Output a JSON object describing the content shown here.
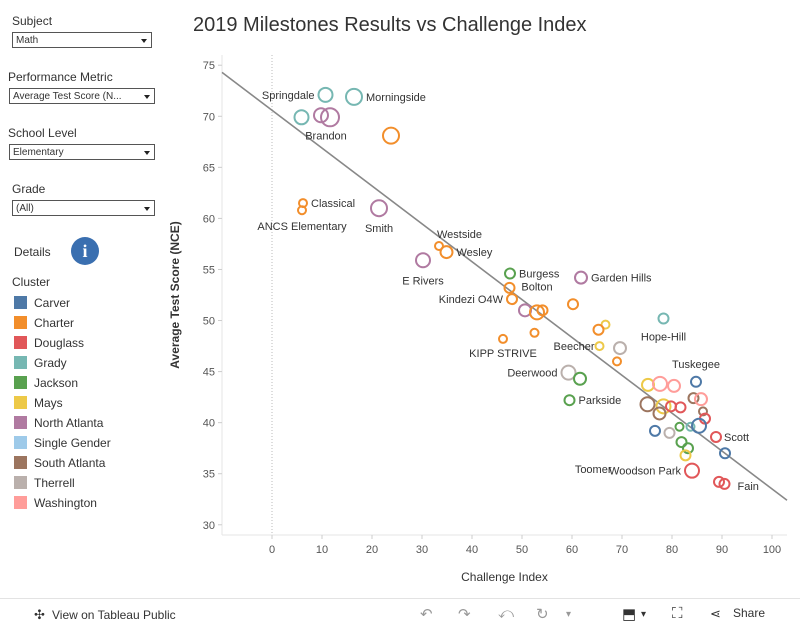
{
  "title": "2019 Milestones Results vs Challenge Index",
  "filters": [
    {
      "label": "Subject",
      "value": "Math"
    },
    {
      "label": "Performance Metric",
      "value": "Average Test Score (N..."
    },
    {
      "label": "School Level",
      "value": "Elementary"
    },
    {
      "label": "Grade",
      "value": "(All)"
    }
  ],
  "details_label": "Details",
  "info_glyph": "i",
  "legend": {
    "title": "Cluster",
    "items": [
      {
        "name": "Carver",
        "color": "#4e79a7"
      },
      {
        "name": "Charter",
        "color": "#f28e2b"
      },
      {
        "name": "Douglass",
        "color": "#e15759"
      },
      {
        "name": "Grady",
        "color": "#76b7b2"
      },
      {
        "name": "Jackson",
        "color": "#59a14f"
      },
      {
        "name": "Mays",
        "color": "#edc948"
      },
      {
        "name": "North Atlanta",
        "color": "#b07aa1"
      },
      {
        "name": "Single Gender",
        "color": "#9ecae9"
      },
      {
        "name": "South Atlanta",
        "color": "#9c755f"
      },
      {
        "name": "Therrell",
        "color": "#bab0ac"
      },
      {
        "name": "Washington",
        "color": "#ff9d9a"
      }
    ]
  },
  "footer": {
    "view_label": "View on Tableau Public",
    "share_label": "Share"
  },
  "chart_data": {
    "type": "scatter",
    "title": "2019 Milestones Results vs Challenge Index",
    "xlabel": "Challenge Index",
    "ylabel": "Average Test Score (NCE)",
    "xlim": [
      -10,
      103
    ],
    "ylim": [
      29,
      76
    ],
    "xticks": [
      0,
      10,
      20,
      30,
      40,
      50,
      60,
      70,
      80,
      90,
      100
    ],
    "yticks": [
      30,
      35,
      40,
      45,
      50,
      55,
      60,
      65,
      70,
      75
    ],
    "trendline": {
      "x1": -10,
      "y1": 74.3,
      "x2": 103,
      "y2": 32.4
    },
    "points": [
      {
        "x": 10.7,
        "y": 72.1,
        "cluster": "Grady",
        "size": 7,
        "label": "Springdale"
      },
      {
        "x": 16.4,
        "y": 71.9,
        "cluster": "Grady",
        "size": 8,
        "label": "Morningside"
      },
      {
        "x": 5.9,
        "y": 69.9,
        "cluster": "Grady",
        "size": 7,
        "label": ""
      },
      {
        "x": 9.8,
        "y": 70.1,
        "cluster": "North Atlanta",
        "size": 7,
        "label": ""
      },
      {
        "x": 11.6,
        "y": 69.9,
        "cluster": "North Atlanta",
        "size": 9,
        "label": "Brandon"
      },
      {
        "x": 23.8,
        "y": 68.1,
        "cluster": "Charter",
        "size": 8,
        "label": ""
      },
      {
        "x": 6.2,
        "y": 61.5,
        "cluster": "Charter",
        "size": 4,
        "label": "Classical"
      },
      {
        "x": 6.0,
        "y": 60.8,
        "cluster": "Charter",
        "size": 4,
        "label": "ANCS Elementary"
      },
      {
        "x": 21.4,
        "y": 61.0,
        "cluster": "North Atlanta",
        "size": 8,
        "label": "Smith"
      },
      {
        "x": 33.4,
        "y": 57.3,
        "cluster": "Charter",
        "size": 4,
        "label": "Westside"
      },
      {
        "x": 34.9,
        "y": 56.7,
        "cluster": "Charter",
        "size": 6,
        "label": "Wesley"
      },
      {
        "x": 30.2,
        "y": 55.9,
        "cluster": "North Atlanta",
        "size": 7,
        "label": "E Rivers"
      },
      {
        "x": 47.6,
        "y": 54.6,
        "cluster": "Jackson",
        "size": 5,
        "label": "Burgess"
      },
      {
        "x": 61.8,
        "y": 54.2,
        "cluster": "North Atlanta",
        "size": 6,
        "label": "Garden Hills"
      },
      {
        "x": 47.5,
        "y": 53.2,
        "cluster": "Charter",
        "size": 5,
        "label": ""
      },
      {
        "x": 48.0,
        "y": 52.1,
        "cluster": "Charter",
        "size": 5,
        "label": "Kindezi O4W"
      },
      {
        "x": 60.2,
        "y": 51.6,
        "cluster": "Charter",
        "size": 5,
        "label": ""
      },
      {
        "x": 50.6,
        "y": 51.0,
        "cluster": "North Atlanta",
        "size": 6,
        "label": ""
      },
      {
        "x": 53.0,
        "y": 50.8,
        "cluster": "Charter",
        "size": 7,
        "label": "Bolton"
      },
      {
        "x": 54.1,
        "y": 51.0,
        "cluster": "Charter",
        "size": 5,
        "label": ""
      },
      {
        "x": 78.3,
        "y": 50.2,
        "cluster": "Grady",
        "size": 5,
        "label": "Hope-Hill"
      },
      {
        "x": 66.7,
        "y": 49.6,
        "cluster": "Mays",
        "size": 4,
        "label": ""
      },
      {
        "x": 65.3,
        "y": 49.1,
        "cluster": "Charter",
        "size": 5,
        "label": ""
      },
      {
        "x": 52.5,
        "y": 48.8,
        "cluster": "Charter",
        "size": 4,
        "label": ""
      },
      {
        "x": 46.2,
        "y": 48.2,
        "cluster": "Charter",
        "size": 4,
        "label": "KIPP STRIVE"
      },
      {
        "x": 65.5,
        "y": 47.5,
        "cluster": "Mays",
        "size": 4,
        "label": "Beecher"
      },
      {
        "x": 69.6,
        "y": 47.3,
        "cluster": "Therrell",
        "size": 6,
        "label": ""
      },
      {
        "x": 69.0,
        "y": 46.0,
        "cluster": "Charter",
        "size": 4,
        "label": ""
      },
      {
        "x": 59.3,
        "y": 44.9,
        "cluster": "Therrell",
        "size": 7,
        "label": "Deerwood"
      },
      {
        "x": 61.6,
        "y": 44.3,
        "cluster": "Jackson",
        "size": 6,
        "label": ""
      },
      {
        "x": 84.8,
        "y": 44.0,
        "cluster": "Carver",
        "size": 5,
        "label": "Tuskegee"
      },
      {
        "x": 75.2,
        "y": 43.7,
        "cluster": "Mays",
        "size": 6,
        "label": ""
      },
      {
        "x": 77.6,
        "y": 43.8,
        "cluster": "Washington",
        "size": 7,
        "label": ""
      },
      {
        "x": 80.4,
        "y": 43.6,
        "cluster": "Washington",
        "size": 6,
        "label": ""
      },
      {
        "x": 59.5,
        "y": 42.2,
        "cluster": "Jackson",
        "size": 5,
        "label": "Parkside"
      },
      {
        "x": 84.3,
        "y": 42.4,
        "cluster": "South Atlanta",
        "size": 5,
        "label": ""
      },
      {
        "x": 85.8,
        "y": 42.3,
        "cluster": "Washington",
        "size": 6,
        "label": ""
      },
      {
        "x": 75.1,
        "y": 41.8,
        "cluster": "South Atlanta",
        "size": 7,
        "label": ""
      },
      {
        "x": 78.3,
        "y": 41.6,
        "cluster": "Mays",
        "size": 7,
        "label": ""
      },
      {
        "x": 79.8,
        "y": 41.6,
        "cluster": "Douglass",
        "size": 5,
        "label": ""
      },
      {
        "x": 81.7,
        "y": 41.5,
        "cluster": "Douglass",
        "size": 5,
        "label": ""
      },
      {
        "x": 77.5,
        "y": 40.9,
        "cluster": "South Atlanta",
        "size": 6,
        "label": ""
      },
      {
        "x": 86.2,
        "y": 41.1,
        "cluster": "South Atlanta",
        "size": 4,
        "label": ""
      },
      {
        "x": 86.6,
        "y": 40.4,
        "cluster": "Douglass",
        "size": 5,
        "label": ""
      },
      {
        "x": 81.5,
        "y": 39.6,
        "cluster": "Jackson",
        "size": 4,
        "label": ""
      },
      {
        "x": 83.7,
        "y": 39.6,
        "cluster": "Grady",
        "size": 4,
        "label": ""
      },
      {
        "x": 85.4,
        "y": 39.7,
        "cluster": "Carver",
        "size": 7,
        "label": ""
      },
      {
        "x": 76.6,
        "y": 39.2,
        "cluster": "Carver",
        "size": 5,
        "label": ""
      },
      {
        "x": 79.5,
        "y": 39.0,
        "cluster": "Therrell",
        "size": 5,
        "label": ""
      },
      {
        "x": 88.8,
        "y": 38.6,
        "cluster": "Douglass",
        "size": 5,
        "label": "Scott"
      },
      {
        "x": 81.9,
        "y": 38.1,
        "cluster": "Jackson",
        "size": 5,
        "label": "Toomer"
      },
      {
        "x": 83.2,
        "y": 37.5,
        "cluster": "Jackson",
        "size": 5,
        "label": ""
      },
      {
        "x": 82.7,
        "y": 36.8,
        "cluster": "Mays",
        "size": 5,
        "label": ""
      },
      {
        "x": 90.6,
        "y": 37.0,
        "cluster": "Carver",
        "size": 5,
        "label": ""
      },
      {
        "x": 84.0,
        "y": 35.3,
        "cluster": "Douglass",
        "size": 7,
        "label": "Woodson Park"
      },
      {
        "x": 89.4,
        "y": 34.2,
        "cluster": "Douglass",
        "size": 5,
        "label": ""
      },
      {
        "x": 90.5,
        "y": 34.0,
        "cluster": "Douglass",
        "size": 5,
        "label": "Fain"
      }
    ]
  }
}
